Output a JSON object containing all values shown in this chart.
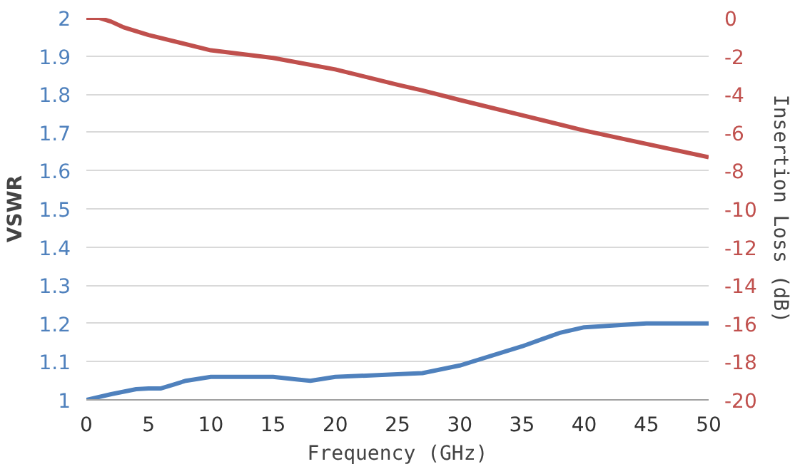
{
  "chart_data": {
    "type": "line",
    "xlabel": "Frequency (GHz)",
    "ylabel": "VSWR",
    "y2label": "Insertion Loss (dB)",
    "xlim": [
      0,
      50
    ],
    "xticks": [
      0,
      5,
      10,
      15,
      20,
      25,
      30,
      35,
      40,
      45,
      50
    ],
    "ylim": [
      1,
      2
    ],
    "yticks": [
      1,
      1.1,
      1.2,
      1.3,
      1.4,
      1.5,
      1.6,
      1.7,
      1.8,
      1.9,
      2
    ],
    "y2lim": [
      -20,
      0
    ],
    "y2ticks": [
      -20,
      -18,
      -16,
      -14,
      -12,
      -10,
      -8,
      -6,
      -4,
      -2,
      0
    ],
    "grid": "y",
    "line_style": "solid",
    "series": [
      {
        "color": "#4f81bd",
        "x": [
          0,
          2,
          4,
          5,
          6,
          7,
          8,
          10,
          15,
          17,
          18,
          20,
          25,
          27,
          30,
          35,
          38,
          40,
          45,
          50
        ],
        "values": [
          1.0,
          1.015,
          1.028,
          1.03,
          1.03,
          1.04,
          1.05,
          1.06,
          1.06,
          1.053,
          1.05,
          1.06,
          1.067,
          1.07,
          1.09,
          1.14,
          1.175,
          1.19,
          1.2,
          1.2
        ]
      },
      {
        "color": "#c0504d",
        "axis": "y2",
        "x": [
          0,
          1,
          2,
          3,
          5,
          10,
          15,
          20,
          25,
          27,
          30,
          35,
          40,
          45,
          50
        ],
        "values": [
          0,
          0,
          -0.2,
          -0.5,
          -0.9,
          -1.7,
          -2.1,
          -2.7,
          -3.5,
          -3.8,
          -4.3,
          -5.1,
          -5.9,
          -6.6,
          -7.3
        ]
      }
    ]
  }
}
